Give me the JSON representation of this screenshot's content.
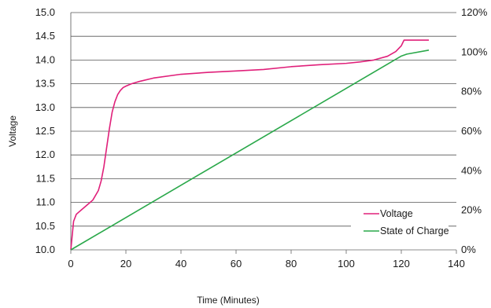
{
  "chart_data": {
    "type": "line",
    "xlabel": "Time (Minutes)",
    "ylabel": "Voltage",
    "y2label": "",
    "xlim": [
      0,
      140
    ],
    "ylim": [
      10.0,
      15.0
    ],
    "y2lim": [
      0,
      120
    ],
    "x_ticks": [
      "0",
      "20",
      "40",
      "60",
      "80",
      "100",
      "120",
      "140"
    ],
    "y_ticks": [
      "10.0",
      "10.5",
      "11.0",
      "11.5",
      "12.0",
      "12.5",
      "13.0",
      "13.5",
      "14.0",
      "14.5",
      "15.0"
    ],
    "y2_ticks": [
      "0%",
      "20%",
      "40%",
      "60%",
      "80%",
      "100%",
      "120%"
    ],
    "grid": "horizontal",
    "legend_position": "bottom-right",
    "series": [
      {
        "name": "Voltage",
        "axis": "left",
        "color": "#e0207a",
        "x": [
          0,
          1,
          2,
          4,
          6,
          8,
          10,
          11,
          12,
          13,
          14,
          15,
          16,
          17,
          18,
          19,
          20,
          22,
          25,
          30,
          40,
          50,
          60,
          70,
          80,
          90,
          100,
          105,
          110,
          115,
          118,
          120,
          121,
          122,
          130
        ],
        "y": [
          10.0,
          10.6,
          10.75,
          10.85,
          10.95,
          11.05,
          11.25,
          11.45,
          11.75,
          12.15,
          12.55,
          12.9,
          13.12,
          13.27,
          13.36,
          13.42,
          13.45,
          13.5,
          13.55,
          13.62,
          13.7,
          13.74,
          13.77,
          13.8,
          13.86,
          13.9,
          13.93,
          13.96,
          14.0,
          14.08,
          14.18,
          14.3,
          14.42,
          14.42,
          14.42
        ]
      },
      {
        "name": "State of Charge",
        "axis": "right",
        "color": "#2aa84a",
        "x": [
          0,
          120,
          122,
          130
        ],
        "y": [
          0,
          98,
          99,
          101
        ]
      }
    ]
  }
}
